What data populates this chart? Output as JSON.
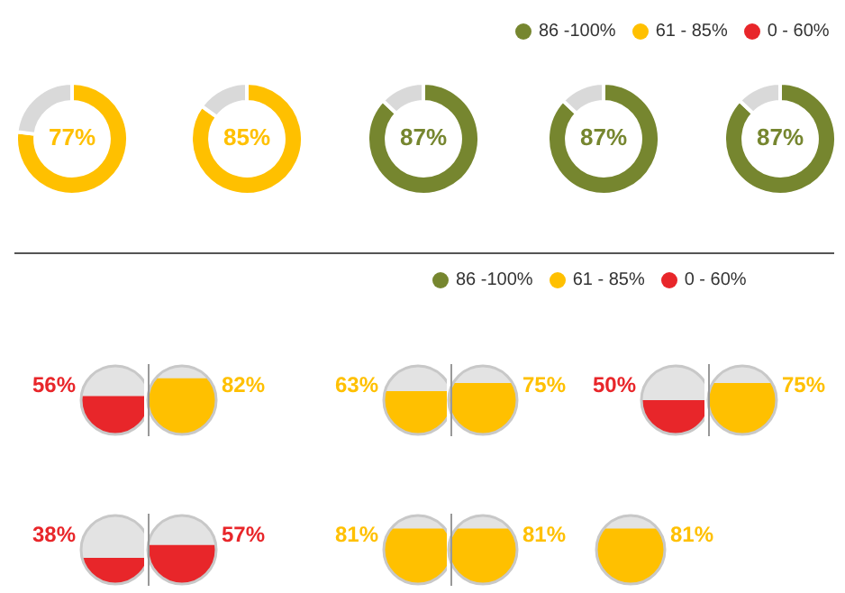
{
  "chart_data": [
    {
      "type": "other",
      "annotations": [
        "86 -100%",
        "61 - 85%",
        "0 - 60%"
      ],
      "colors": [
        "#76862f",
        "#ffc000",
        "#e8262a"
      ]
    },
    {
      "type": "donut",
      "categories": [
        null,
        null
      ],
      "values": [
        77,
        23
      ],
      "colors": [
        "#ffc000",
        "#d9d9d9"
      ],
      "annotations": [
        "77%"
      ]
    },
    {
      "type": "donut",
      "categories": [
        null,
        null
      ],
      "values": [
        85,
        15
      ],
      "colors": [
        "#ffc000",
        "#d9d9d9"
      ],
      "annotations": [
        "85%"
      ]
    },
    {
      "type": "donut",
      "categories": [
        null,
        null
      ],
      "values": [
        87,
        13
      ],
      "colors": [
        "#76862f",
        "#d9d9d9"
      ],
      "annotations": [
        "87%"
      ]
    },
    {
      "type": "donut",
      "categories": [
        null,
        null
      ],
      "values": [
        87,
        13
      ],
      "colors": [
        "#76862f",
        "#d9d9d9"
      ],
      "annotations": [
        "87%"
      ]
    },
    {
      "type": "donut",
      "categories": [
        null,
        null
      ],
      "values": [
        87,
        13
      ],
      "colors": [
        "#76862f",
        "#d9d9d9"
      ],
      "annotations": [
        "87%"
      ]
    },
    {
      "type": "other",
      "annotations": [
        "86 -100%",
        "61 - 85%",
        "0 - 60%"
      ],
      "colors": [
        "#76862f",
        "#ffc000",
        "#e8262a"
      ]
    },
    {
      "type": "other",
      "values": [
        56
      ],
      "colors": [
        "#e8262a"
      ],
      "value_labels": [
        "56%"
      ]
    },
    {
      "type": "other",
      "values": [
        82
      ],
      "colors": [
        "#ffc000"
      ],
      "value_labels": [
        "82%"
      ]
    },
    {
      "type": "other",
      "values": [
        63
      ],
      "colors": [
        "#ffc000"
      ],
      "value_labels": [
        "63%"
      ]
    },
    {
      "type": "other",
      "values": [
        75
      ],
      "colors": [
        "#ffc000"
      ],
      "value_labels": [
        "75%"
      ]
    },
    {
      "type": "other",
      "values": [
        50
      ],
      "colors": [
        "#e8262a"
      ],
      "value_labels": [
        "50%"
      ]
    },
    {
      "type": "other",
      "values": [
        75
      ],
      "colors": [
        "#ffc000"
      ],
      "value_labels": [
        "75%"
      ]
    },
    {
      "type": "other",
      "values": [
        38
      ],
      "colors": [
        "#e8262a"
      ],
      "value_labels": [
        "38%"
      ]
    },
    {
      "type": "other",
      "values": [
        57
      ],
      "colors": [
        "#e8262a"
      ],
      "value_labels": [
        "57%"
      ]
    },
    {
      "type": "other",
      "values": [
        81
      ],
      "colors": [
        "#ffc000"
      ],
      "value_labels": [
        "81%"
      ]
    },
    {
      "type": "other",
      "values": [
        81
      ],
      "colors": [
        "#ffc000"
      ],
      "value_labels": [
        "81%"
      ]
    },
    {
      "type": "other",
      "values": [
        81
      ],
      "colors": [
        "#ffc000"
      ],
      "value_labels": [
        "81%"
      ]
    }
  ]
}
